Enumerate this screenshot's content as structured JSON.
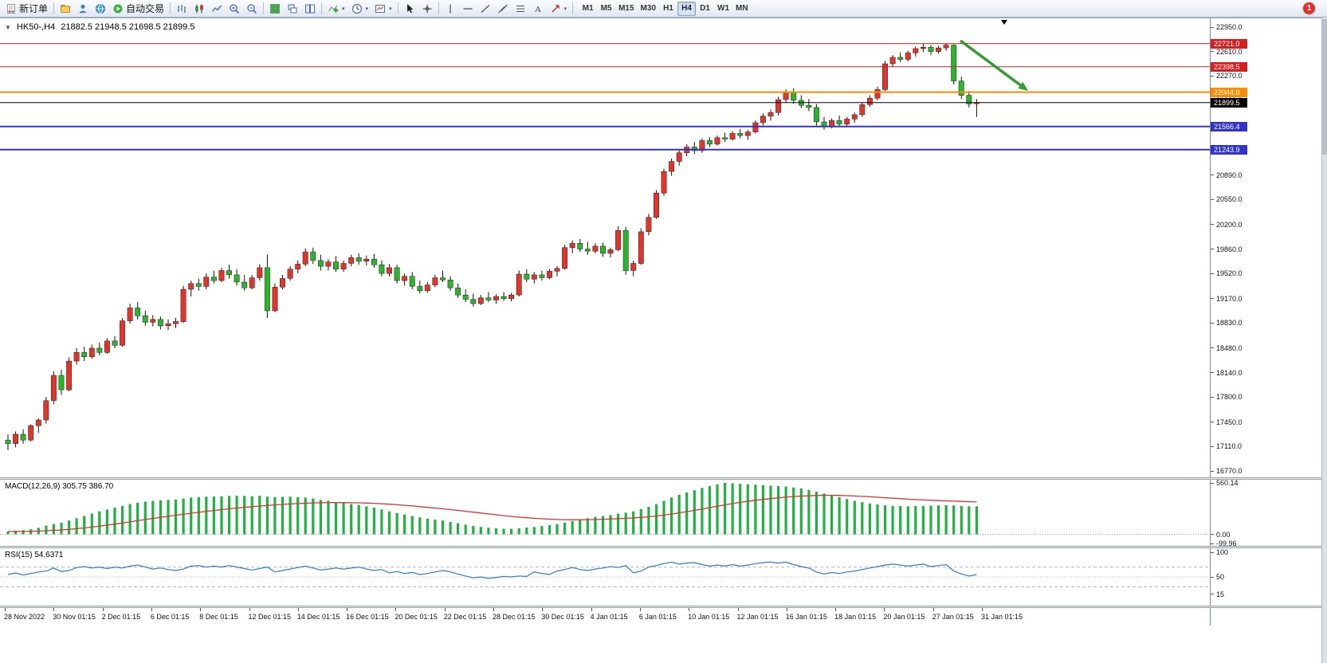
{
  "toolbar": {
    "new_order": "新订单",
    "auto_trading": "自动交易",
    "timeframes": [
      "M1",
      "M5",
      "M15",
      "M30",
      "H1",
      "H4",
      "D1",
      "W1",
      "MN"
    ],
    "active_timeframe": "H4",
    "notification_count": "1",
    "icons": {
      "new-order-icon": "white-order-form",
      "profile-icon": "gold-folder",
      "community-icon": "blue-person",
      "help-icon": "globe",
      "autotrading-icon": "green-play-circle",
      "bar-chart-icon": "ohlc-bars",
      "candlestick-icon": "two-candles",
      "line-chart-icon": "zigzag-line",
      "zoom-in-icon": "magnifier-plus",
      "zoom-out-icon": "magnifier-minus",
      "tile-windows-icon": "green-grid",
      "cascade-windows-icon": "stacked-windows",
      "arrange-windows-icon": "side-by-side-windows",
      "indicators-icon": "chart-with-green-plus",
      "periods-icon": "clock",
      "templates-icon": "chart-template",
      "cursor-icon": "pointer-arrow",
      "crosshair-icon": "crosshair",
      "vline-icon": "vertical-line",
      "hline-icon": "horizontal-line",
      "trendline-icon": "diagonal-line",
      "channel-icon": "parallel-lines",
      "fibonacci-icon": "fibo-retracement-lines",
      "text-icon": "letter-A",
      "arrows-icon": "ne-arrow",
      "dropdown-caret-icon": "small-down-triangle"
    }
  },
  "chart": {
    "symbol": "HK50-,H4",
    "ohlc": "21882.5 21948.5 21698.5 21899.5"
  },
  "chart_data": {
    "type": "candlestick",
    "symbol": "HK50-",
    "timeframe": "H4",
    "price_range": [
      16770,
      22950
    ],
    "price_axis_ticks": [
      "22950.0",
      "22610.0",
      "22270.0",
      "21930.0",
      "21590.0",
      "21250.0",
      "20890.0",
      "20550.0",
      "20200.0",
      "19860.0",
      "19520.0",
      "19170.0",
      "18830.0",
      "18480.0",
      "18140.0",
      "17800.0",
      "17450.0",
      "17110.0",
      "16770.0"
    ],
    "levels": [
      {
        "price": 22721.0,
        "label": "22721.0",
        "color": "#d42020",
        "width": 1
      },
      {
        "price": 22398.5,
        "label": "22398.5",
        "color": "#d42020",
        "width": 1
      },
      {
        "price": 22044.8,
        "label": "22044.8",
        "color": "#ff8c00",
        "width": 2
      },
      {
        "price": 21899.5,
        "label": "21899.5",
        "color": "#000000",
        "width": 1
      },
      {
        "price": 21566.4,
        "label": "21566.4",
        "color": "#3232cc",
        "width": 2
      },
      {
        "price": 21243.9,
        "label": "21243.9",
        "color": "#3232cc",
        "width": 2
      }
    ],
    "colors": {
      "bull": "#e0352b",
      "bear": "#2db32d",
      "wick": "#111111"
    },
    "arrow": {
      "from": [
        1205,
        28
      ],
      "to": [
        1290,
        91
      ],
      "color": "#2f9e2f"
    },
    "candles": [
      [
        17200,
        17280,
        17060,
        17150
      ],
      [
        17150,
        17320,
        17100,
        17280
      ],
      [
        17280,
        17350,
        17150,
        17200
      ],
      [
        17200,
        17420,
        17180,
        17400
      ],
      [
        17400,
        17500,
        17300,
        17480
      ],
      [
        17480,
        17800,
        17430,
        17750
      ],
      [
        17750,
        18160,
        17700,
        18100
      ],
      [
        18100,
        18180,
        17830,
        17900
      ],
      [
        17900,
        18350,
        17880,
        18300
      ],
      [
        18300,
        18480,
        18250,
        18420
      ],
      [
        18420,
        18500,
        18300,
        18360
      ],
      [
        18360,
        18530,
        18330,
        18480
      ],
      [
        18480,
        18560,
        18380,
        18420
      ],
      [
        18420,
        18620,
        18400,
        18580
      ],
      [
        18580,
        18650,
        18480,
        18520
      ],
      [
        18520,
        18900,
        18500,
        18860
      ],
      [
        18860,
        19100,
        18820,
        19040
      ],
      [
        19040,
        19120,
        18880,
        18930
      ],
      [
        18930,
        19000,
        18790,
        18840
      ],
      [
        18840,
        18940,
        18780,
        18880
      ],
      [
        18880,
        18920,
        18740,
        18790
      ],
      [
        18790,
        18880,
        18730,
        18820
      ],
      [
        18820,
        18900,
        18760,
        18850
      ],
      [
        18850,
        19350,
        18830,
        19300
      ],
      [
        19300,
        19420,
        19200,
        19380
      ],
      [
        19380,
        19450,
        19280,
        19340
      ],
      [
        19340,
        19520,
        19300,
        19470
      ],
      [
        19470,
        19560,
        19380,
        19420
      ],
      [
        19420,
        19600,
        19400,
        19560
      ],
      [
        19560,
        19640,
        19450,
        19500
      ],
      [
        19500,
        19580,
        19350,
        19400
      ],
      [
        19400,
        19500,
        19280,
        19320
      ],
      [
        19320,
        19500,
        19300,
        19460
      ],
      [
        19460,
        19650,
        19420,
        19600
      ],
      [
        19600,
        19780,
        18900,
        19000
      ],
      [
        19000,
        19380,
        18980,
        19330
      ],
      [
        19330,
        19500,
        19300,
        19450
      ],
      [
        19450,
        19620,
        19420,
        19580
      ],
      [
        19580,
        19700,
        19520,
        19650
      ],
      [
        19650,
        19870,
        19620,
        19820
      ],
      [
        19820,
        19880,
        19650,
        19700
      ],
      [
        19700,
        19780,
        19560,
        19620
      ],
      [
        19620,
        19720,
        19560,
        19680
      ],
      [
        19680,
        19760,
        19540,
        19580
      ],
      [
        19580,
        19700,
        19540,
        19660
      ],
      [
        19660,
        19780,
        19620,
        19740
      ],
      [
        19740,
        19800,
        19640,
        19690
      ],
      [
        19690,
        19770,
        19630,
        19720
      ],
      [
        19720,
        19790,
        19600,
        19640
      ],
      [
        19640,
        19700,
        19480,
        19520
      ],
      [
        19520,
        19650,
        19480,
        19600
      ],
      [
        19600,
        19640,
        19380,
        19420
      ],
      [
        19420,
        19520,
        19350,
        19480
      ],
      [
        19480,
        19540,
        19300,
        19340
      ],
      [
        19340,
        19420,
        19240,
        19280
      ],
      [
        19280,
        19400,
        19250,
        19360
      ],
      [
        19360,
        19500,
        19330,
        19460
      ],
      [
        19460,
        19560,
        19400,
        19430
      ],
      [
        19430,
        19480,
        19280,
        19320
      ],
      [
        19320,
        19380,
        19180,
        19220
      ],
      [
        19220,
        19300,
        19120,
        19160
      ],
      [
        19160,
        19240,
        19060,
        19100
      ],
      [
        19100,
        19220,
        19080,
        19180
      ],
      [
        19180,
        19260,
        19120,
        19150
      ],
      [
        19150,
        19230,
        19100,
        19200
      ],
      [
        19200,
        19260,
        19140,
        19170
      ],
      [
        19170,
        19250,
        19130,
        19220
      ],
      [
        19220,
        19560,
        19200,
        19510
      ],
      [
        19510,
        19580,
        19400,
        19440
      ],
      [
        19440,
        19540,
        19380,
        19500
      ],
      [
        19500,
        19560,
        19420,
        19460
      ],
      [
        19460,
        19580,
        19440,
        19550
      ],
      [
        19550,
        19620,
        19480,
        19590
      ],
      [
        19590,
        19920,
        19570,
        19880
      ],
      [
        19880,
        19980,
        19800,
        19940
      ],
      [
        19940,
        20000,
        19820,
        19860
      ],
      [
        19860,
        19960,
        19780,
        19830
      ],
      [
        19830,
        19940,
        19800,
        19900
      ],
      [
        19900,
        19950,
        19750,
        19800
      ],
      [
        19800,
        19880,
        19740,
        19850
      ],
      [
        19850,
        20180,
        19830,
        20120
      ],
      [
        20120,
        20170,
        19500,
        19560
      ],
      [
        19560,
        19700,
        19480,
        19660
      ],
      [
        19660,
        20150,
        19640,
        20100
      ],
      [
        20100,
        20350,
        20050,
        20300
      ],
      [
        20300,
        20680,
        20280,
        20640
      ],
      [
        20640,
        20980,
        20600,
        20940
      ],
      [
        20940,
        21120,
        20880,
        21080
      ],
      [
        21080,
        21250,
        21020,
        21200
      ],
      [
        21200,
        21320,
        21150,
        21280
      ],
      [
        21280,
        21350,
        21180,
        21230
      ],
      [
        21230,
        21400,
        21200,
        21370
      ],
      [
        21370,
        21420,
        21280,
        21320
      ],
      [
        21320,
        21440,
        21300,
        21410
      ],
      [
        21410,
        21480,
        21350,
        21390
      ],
      [
        21390,
        21500,
        21370,
        21470
      ],
      [
        21470,
        21530,
        21400,
        21440
      ],
      [
        21440,
        21520,
        21380,
        21490
      ],
      [
        21490,
        21650,
        21470,
        21620
      ],
      [
        21620,
        21750,
        21580,
        21710
      ],
      [
        21710,
        21800,
        21650,
        21760
      ],
      [
        21760,
        21980,
        21720,
        21940
      ],
      [
        21940,
        22080,
        21900,
        22040
      ],
      [
        22040,
        22100,
        21880,
        21930
      ],
      [
        21930,
        22000,
        21820,
        21860
      ],
      [
        21860,
        21950,
        21780,
        21830
      ],
      [
        21830,
        21880,
        21580,
        21630
      ],
      [
        21630,
        21700,
        21520,
        21560
      ],
      [
        21560,
        21680,
        21540,
        21650
      ],
      [
        21650,
        21720,
        21560,
        21600
      ],
      [
        21600,
        21700,
        21560,
        21670
      ],
      [
        21670,
        21760,
        21620,
        21730
      ],
      [
        21730,
        21900,
        21700,
        21870
      ],
      [
        21870,
        22000,
        21840,
        21960
      ],
      [
        21960,
        22120,
        21930,
        22080
      ],
      [
        22080,
        22480,
        22060,
        22440
      ],
      [
        22440,
        22560,
        22400,
        22530
      ],
      [
        22530,
        22600,
        22460,
        22500
      ],
      [
        22500,
        22620,
        22470,
        22590
      ],
      [
        22590,
        22680,
        22540,
        22650
      ],
      [
        22650,
        22720,
        22600,
        22670
      ],
      [
        22670,
        22700,
        22560,
        22610
      ],
      [
        22610,
        22690,
        22580,
        22660
      ],
      [
        22660,
        22730,
        22620,
        22700
      ],
      [
        22700,
        22710,
        22150,
        22200
      ],
      [
        22200,
        22260,
        21950,
        22000
      ],
      [
        22000,
        22060,
        21830,
        21880
      ],
      [
        21882.5,
        21948.5,
        21698.5,
        21899.5
      ]
    ],
    "indicators": {
      "macd": {
        "label": "MACD(12,26,9) 305.75 386.70",
        "axis_ticks": [
          "560.14",
          "0.00",
          "-99.96"
        ],
        "range": [
          -99.96,
          560.14
        ],
        "histogram_color": "#1fb141",
        "signal_color": "#e03030",
        "histogram": [
          30,
          40,
          45,
          55,
          70,
          95,
          110,
          125,
          150,
          175,
          200,
          225,
          250,
          270,
          290,
          310,
          330,
          345,
          355,
          365,
          370,
          375,
          380,
          390,
          400,
          405,
          410,
          412,
          415,
          418,
          420,
          418,
          415,
          420,
          410,
          405,
          408,
          410,
          405,
          400,
          390,
          375,
          365,
          350,
          340,
          330,
          320,
          305,
          290,
          270,
          250,
          230,
          215,
          200,
          185,
          170,
          160,
          150,
          135,
          120,
          105,
          90,
          80,
          72,
          65,
          62,
          60,
          65,
          72,
          80,
          90,
          100,
          112,
          128,
          145,
          160,
          175,
          190,
          200,
          210,
          225,
          235,
          250,
          275,
          300,
          330,
          365,
          400,
          430,
          455,
          480,
          505,
          525,
          545,
          560,
          555,
          550,
          545,
          540,
          535,
          530,
          525,
          520,
          510,
          500,
          485,
          465,
          445,
          425,
          405,
          385,
          365,
          350,
          335,
          325,
          315,
          310,
          308,
          306,
          308,
          310,
          312,
          315,
          318,
          315,
          310,
          306,
          305.75
        ]
      },
      "rsi": {
        "label": "RSI(15) 54.6371",
        "axis_ticks": [
          "100",
          "50",
          "15"
        ],
        "levels": [
          70,
          50,
          30
        ],
        "line_color": "#2b7cd3",
        "values": [
          55,
          58,
          54,
          57,
          60,
          62,
          68,
          61,
          63,
          69,
          71,
          68,
          70,
          67,
          70,
          68,
          72,
          74,
          70,
          66,
          68,
          65,
          63,
          66,
          72,
          73,
          70,
          72,
          70,
          73,
          70,
          67,
          64,
          67,
          70,
          60,
          63,
          66,
          69,
          72,
          68,
          64,
          66,
          68,
          66,
          68,
          70,
          66,
          63,
          65,
          58,
          61,
          57,
          59,
          55,
          57,
          60,
          63,
          60,
          56,
          52,
          48,
          50,
          47,
          49,
          51,
          50,
          52,
          51,
          60,
          57,
          55,
          62,
          65,
          69,
          65,
          63,
          66,
          68,
          71,
          69,
          73,
          58,
          62,
          70,
          73,
          77,
          80,
          76,
          78,
          79,
          75,
          72,
          74,
          72,
          75,
          72,
          74,
          77,
          79,
          80,
          78,
          80,
          75,
          71,
          68,
          60,
          56,
          59,
          57,
          60,
          62,
          65,
          68,
          71,
          74,
          76,
          74,
          72,
          74,
          76,
          71,
          73,
          75,
          62,
          56,
          52,
          54.6
        ]
      }
    },
    "time_labels": [
      "28 Nov 2022",
      "30 Nov 01:15",
      "2 Dec 01:15",
      "6 Dec 01:15",
      "8 Dec 01:15",
      "12 Dec 01:15",
      "14 Dec 01:15",
      "16 Dec 01:15",
      "20 Dec 01:15",
      "22 Dec 01:15",
      "28 Dec 01:15",
      "30 Dec 01:15",
      "4 Jan 01:15",
      "6 Jan 01:15",
      "10 Jan 01:15",
      "12 Jan 01:15",
      "16 Jan 01:15",
      "18 Jan 01:15",
      "20 Jan 01:15",
      "27 Jan 01:15",
      "31 Jan 01:15"
    ]
  }
}
